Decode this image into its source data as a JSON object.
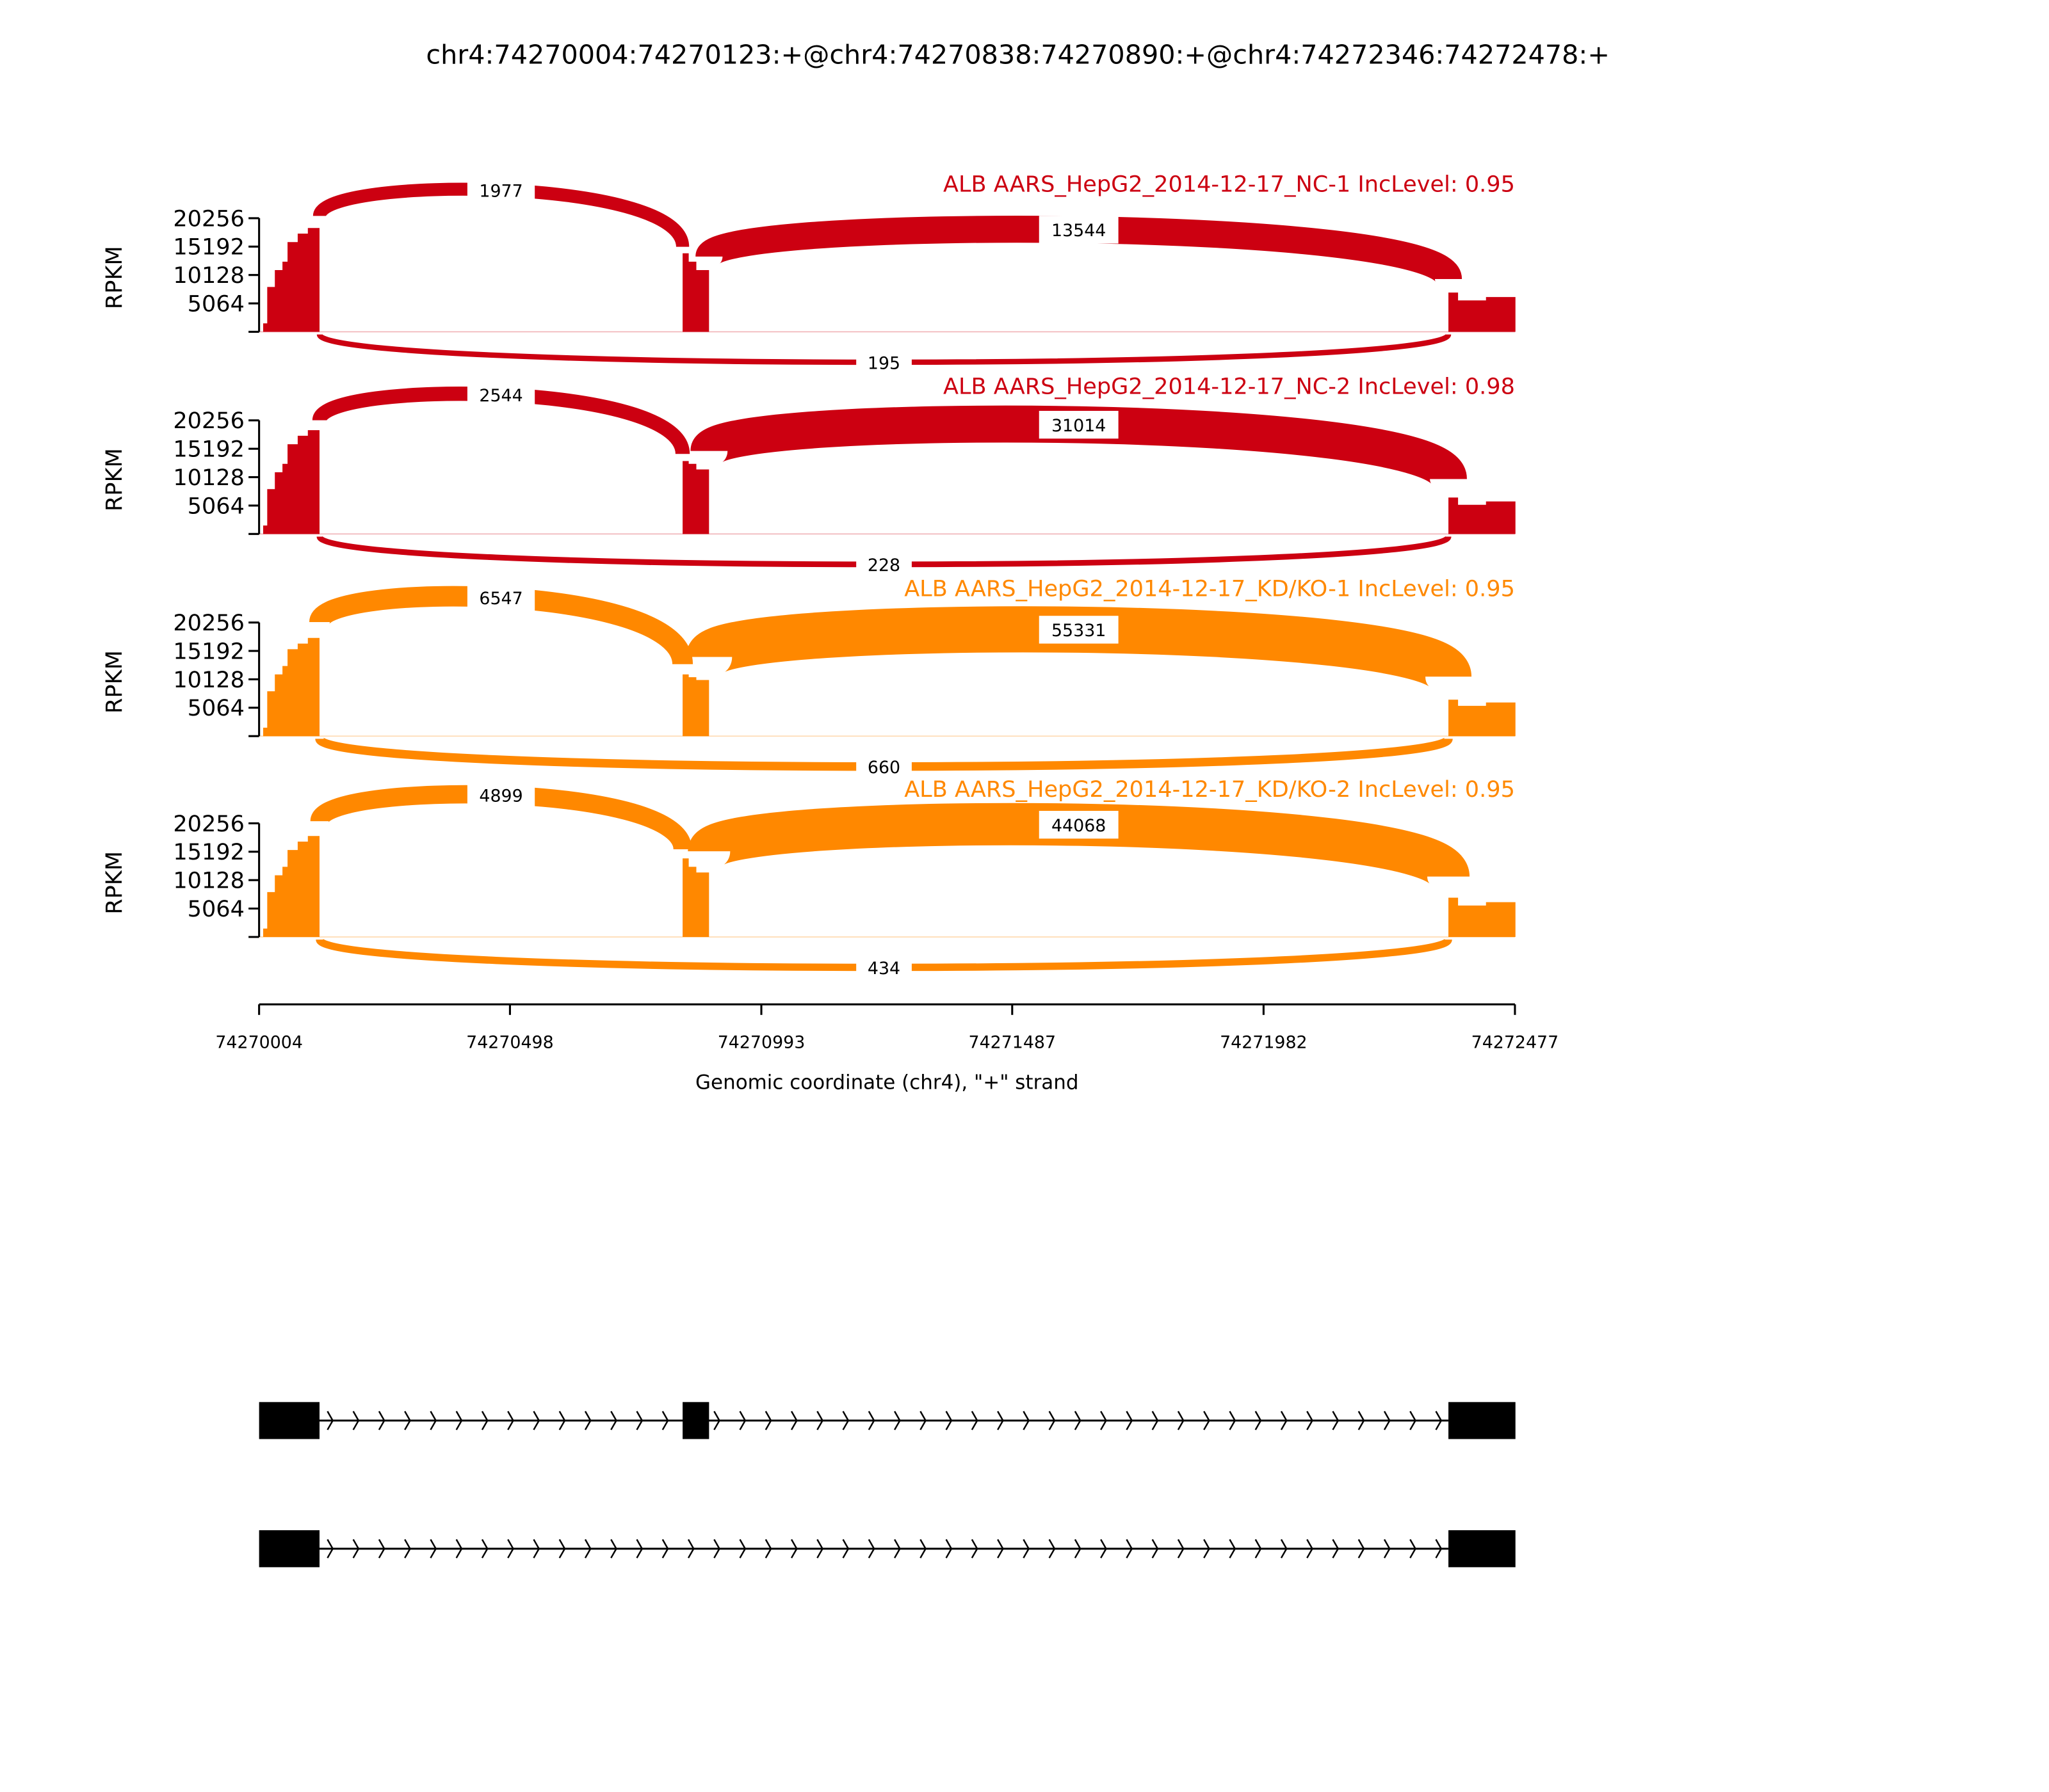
{
  "chart_data": {
    "type": "area",
    "title": "chr4:74270004:74270123:+@chr4:74270838:74270890:+@chr4:74272346:74272478:+",
    "xlabel": "Genomic coordinate (chr4), \"+\" strand",
    "ylabel": "RPKM",
    "xlim": [
      74270004,
      74272477
    ],
    "ylim": [
      0,
      20256
    ],
    "x_ticks": [
      "74270004",
      "74270498",
      "74270993",
      "74271487",
      "74271982",
      "74272477"
    ],
    "y_ticks": [
      "5064",
      "10128",
      "15192",
      "20256"
    ],
    "grid": false,
    "exons": [
      [
        74270004,
        74270123
      ],
      [
        74270838,
        74270890
      ],
      [
        74272346,
        74272478
      ]
    ],
    "samples": [
      {
        "label": "ALB AARS_HepG2_2014-12-17_NC-1 IncLevel: 0.95",
        "color": "#cc0011",
        "coverage": [
          [
            74270004,
            0
          ],
          [
            74270012,
            1500
          ],
          [
            74270020,
            8000
          ],
          [
            74270035,
            11000
          ],
          [
            74270050,
            12500
          ],
          [
            74270060,
            16000
          ],
          [
            74270080,
            17500
          ],
          [
            74270100,
            18500
          ],
          [
            74270123,
            19500
          ],
          [
            74270838,
            14000
          ],
          [
            74270850,
            12500
          ],
          [
            74270865,
            11000
          ],
          [
            74270890,
            11000
          ],
          [
            74272346,
            7000
          ],
          [
            74272365,
            5600
          ],
          [
            74272420,
            6200
          ],
          [
            74272478,
            7700
          ]
        ],
        "junctions": [
          {
            "from": 74270123,
            "to": 74270838,
            "count": "1977",
            "side": "above"
          },
          {
            "from": 74270890,
            "to": 74272346,
            "count": "13544",
            "side": "above"
          },
          {
            "from": 74270123,
            "to": 74272346,
            "count": "195",
            "side": "below"
          }
        ]
      },
      {
        "label": "ALB AARS_HepG2_2014-12-17_NC-2 IncLevel: 0.98",
        "color": "#cc0011",
        "coverage": [
          [
            74270004,
            0
          ],
          [
            74270012,
            1500
          ],
          [
            74270020,
            8000
          ],
          [
            74270035,
            11000
          ],
          [
            74270050,
            12500
          ],
          [
            74270060,
            16000
          ],
          [
            74270080,
            17500
          ],
          [
            74270100,
            18500
          ],
          [
            74270123,
            19000
          ],
          [
            74270838,
            13000
          ],
          [
            74270850,
            12500
          ],
          [
            74270865,
            11500
          ],
          [
            74270890,
            11500
          ],
          [
            74272346,
            6500
          ],
          [
            74272365,
            5200
          ],
          [
            74272420,
            5800
          ],
          [
            74272478,
            7000
          ]
        ],
        "junctions": [
          {
            "from": 74270123,
            "to": 74270838,
            "count": "2544",
            "side": "above"
          },
          {
            "from": 74270890,
            "to": 74272346,
            "count": "31014",
            "side": "above"
          },
          {
            "from": 74270123,
            "to": 74272346,
            "count": "228",
            "side": "below"
          }
        ]
      },
      {
        "label": "ALB AARS_HepG2_2014-12-17_KD/KO-1 IncLevel: 0.95",
        "color": "#ff8800",
        "coverage": [
          [
            74270004,
            0
          ],
          [
            74270012,
            1500
          ],
          [
            74270020,
            8000
          ],
          [
            74270035,
            11000
          ],
          [
            74270050,
            12500
          ],
          [
            74270060,
            15500
          ],
          [
            74270080,
            16500
          ],
          [
            74270100,
            17500
          ],
          [
            74270123,
            18500
          ],
          [
            74270838,
            11000
          ],
          [
            74270850,
            10500
          ],
          [
            74270865,
            10000
          ],
          [
            74270890,
            10000
          ],
          [
            74272346,
            6500
          ],
          [
            74272365,
            5400
          ],
          [
            74272420,
            6000
          ],
          [
            74272478,
            7500
          ]
        ],
        "junctions": [
          {
            "from": 74270123,
            "to": 74270838,
            "count": "6547",
            "side": "above"
          },
          {
            "from": 74270890,
            "to": 74272346,
            "count": "55331",
            "side": "above"
          },
          {
            "from": 74270123,
            "to": 74272346,
            "count": "660",
            "side": "below"
          }
        ]
      },
      {
        "label": "ALB AARS_HepG2_2014-12-17_KD/KO-2 IncLevel: 0.95",
        "color": "#ff8800",
        "coverage": [
          [
            74270004,
            0
          ],
          [
            74270012,
            1500
          ],
          [
            74270020,
            8000
          ],
          [
            74270035,
            11000
          ],
          [
            74270050,
            12500
          ],
          [
            74270060,
            15500
          ],
          [
            74270080,
            17000
          ],
          [
            74270100,
            18000
          ],
          [
            74270123,
            19000
          ],
          [
            74270838,
            14000
          ],
          [
            74270850,
            12500
          ],
          [
            74270865,
            11500
          ],
          [
            74270890,
            11500
          ],
          [
            74272346,
            7000
          ],
          [
            74272365,
            5600
          ],
          [
            74272420,
            6200
          ],
          [
            74272478,
            7700
          ]
        ],
        "junctions": [
          {
            "from": 74270123,
            "to": 74270838,
            "count": "4899",
            "side": "above"
          },
          {
            "from": 74270890,
            "to": 74272346,
            "count": "44068",
            "side": "above"
          },
          {
            "from": 74270123,
            "to": 74272346,
            "count": "434",
            "side": "below"
          }
        ]
      }
    ],
    "transcripts": [
      {
        "exons": [
          [
            74270004,
            74270123
          ],
          [
            74270838,
            74270890
          ],
          [
            74272346,
            74272478
          ]
        ],
        "strand": "+"
      },
      {
        "exons": [
          [
            74270004,
            74270123
          ],
          [
            74272346,
            74272478
          ]
        ],
        "strand": "+"
      }
    ]
  }
}
